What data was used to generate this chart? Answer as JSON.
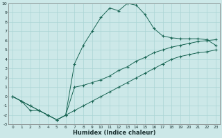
{
  "xlabel": "Humidex (Indice chaleur)",
  "xlim": [
    -0.5,
    23.5
  ],
  "ylim": [
    -3,
    10
  ],
  "xticks": [
    0,
    1,
    2,
    3,
    4,
    5,
    6,
    7,
    8,
    9,
    10,
    11,
    12,
    13,
    14,
    15,
    16,
    17,
    18,
    19,
    20,
    21,
    22,
    23
  ],
  "yticks": [
    -3,
    -2,
    -1,
    0,
    1,
    2,
    3,
    4,
    5,
    6,
    7,
    8,
    9,
    10
  ],
  "bg_color": "#cce8e8",
  "line_color": "#1a6655",
  "grid_color": "#aad4d4",
  "line1": {
    "x": [
      0,
      1,
      2,
      3,
      4,
      5,
      6,
      7,
      8,
      9,
      10,
      11,
      12,
      13,
      14,
      15,
      16,
      17,
      18,
      19,
      20,
      21,
      22,
      23
    ],
    "y": [
      0.0,
      -0.5,
      -1.0,
      -1.5,
      -2.0,
      -2.5,
      -2.0,
      -1.5,
      -1.0,
      -0.5,
      0.0,
      0.5,
      1.0,
      1.5,
      2.0,
      2.5,
      3.0,
      3.5,
      4.0,
      4.3,
      4.5,
      4.7,
      4.8,
      5.0
    ]
  },
  "line2": {
    "x": [
      0,
      1,
      2,
      3,
      4,
      5,
      6,
      7,
      8,
      9,
      10,
      11,
      12,
      13,
      14,
      15,
      16,
      17,
      18,
      19,
      20,
      21,
      22,
      23
    ],
    "y": [
      0.0,
      -0.5,
      -1.0,
      -1.5,
      -2.0,
      -2.5,
      -2.0,
      1.0,
      1.2,
      1.5,
      1.8,
      2.2,
      2.8,
      3.2,
      3.8,
      4.2,
      4.7,
      5.0,
      5.3,
      5.5,
      5.7,
      5.9,
      6.0,
      6.1
    ]
  },
  "line3": {
    "x": [
      0,
      1,
      2,
      3,
      4,
      5,
      6,
      7,
      8,
      9,
      10,
      11,
      12,
      13,
      14,
      15,
      16,
      17,
      18,
      19,
      20,
      21,
      22,
      23
    ],
    "y": [
      0.0,
      -0.5,
      -1.5,
      -1.5,
      -2.0,
      -2.5,
      -2.0,
      3.5,
      5.5,
      7.0,
      8.5,
      9.5,
      9.2,
      10.0,
      9.8,
      8.8,
      7.3,
      6.5,
      6.3,
      6.2,
      6.2,
      6.2,
      6.1,
      5.5
    ]
  }
}
